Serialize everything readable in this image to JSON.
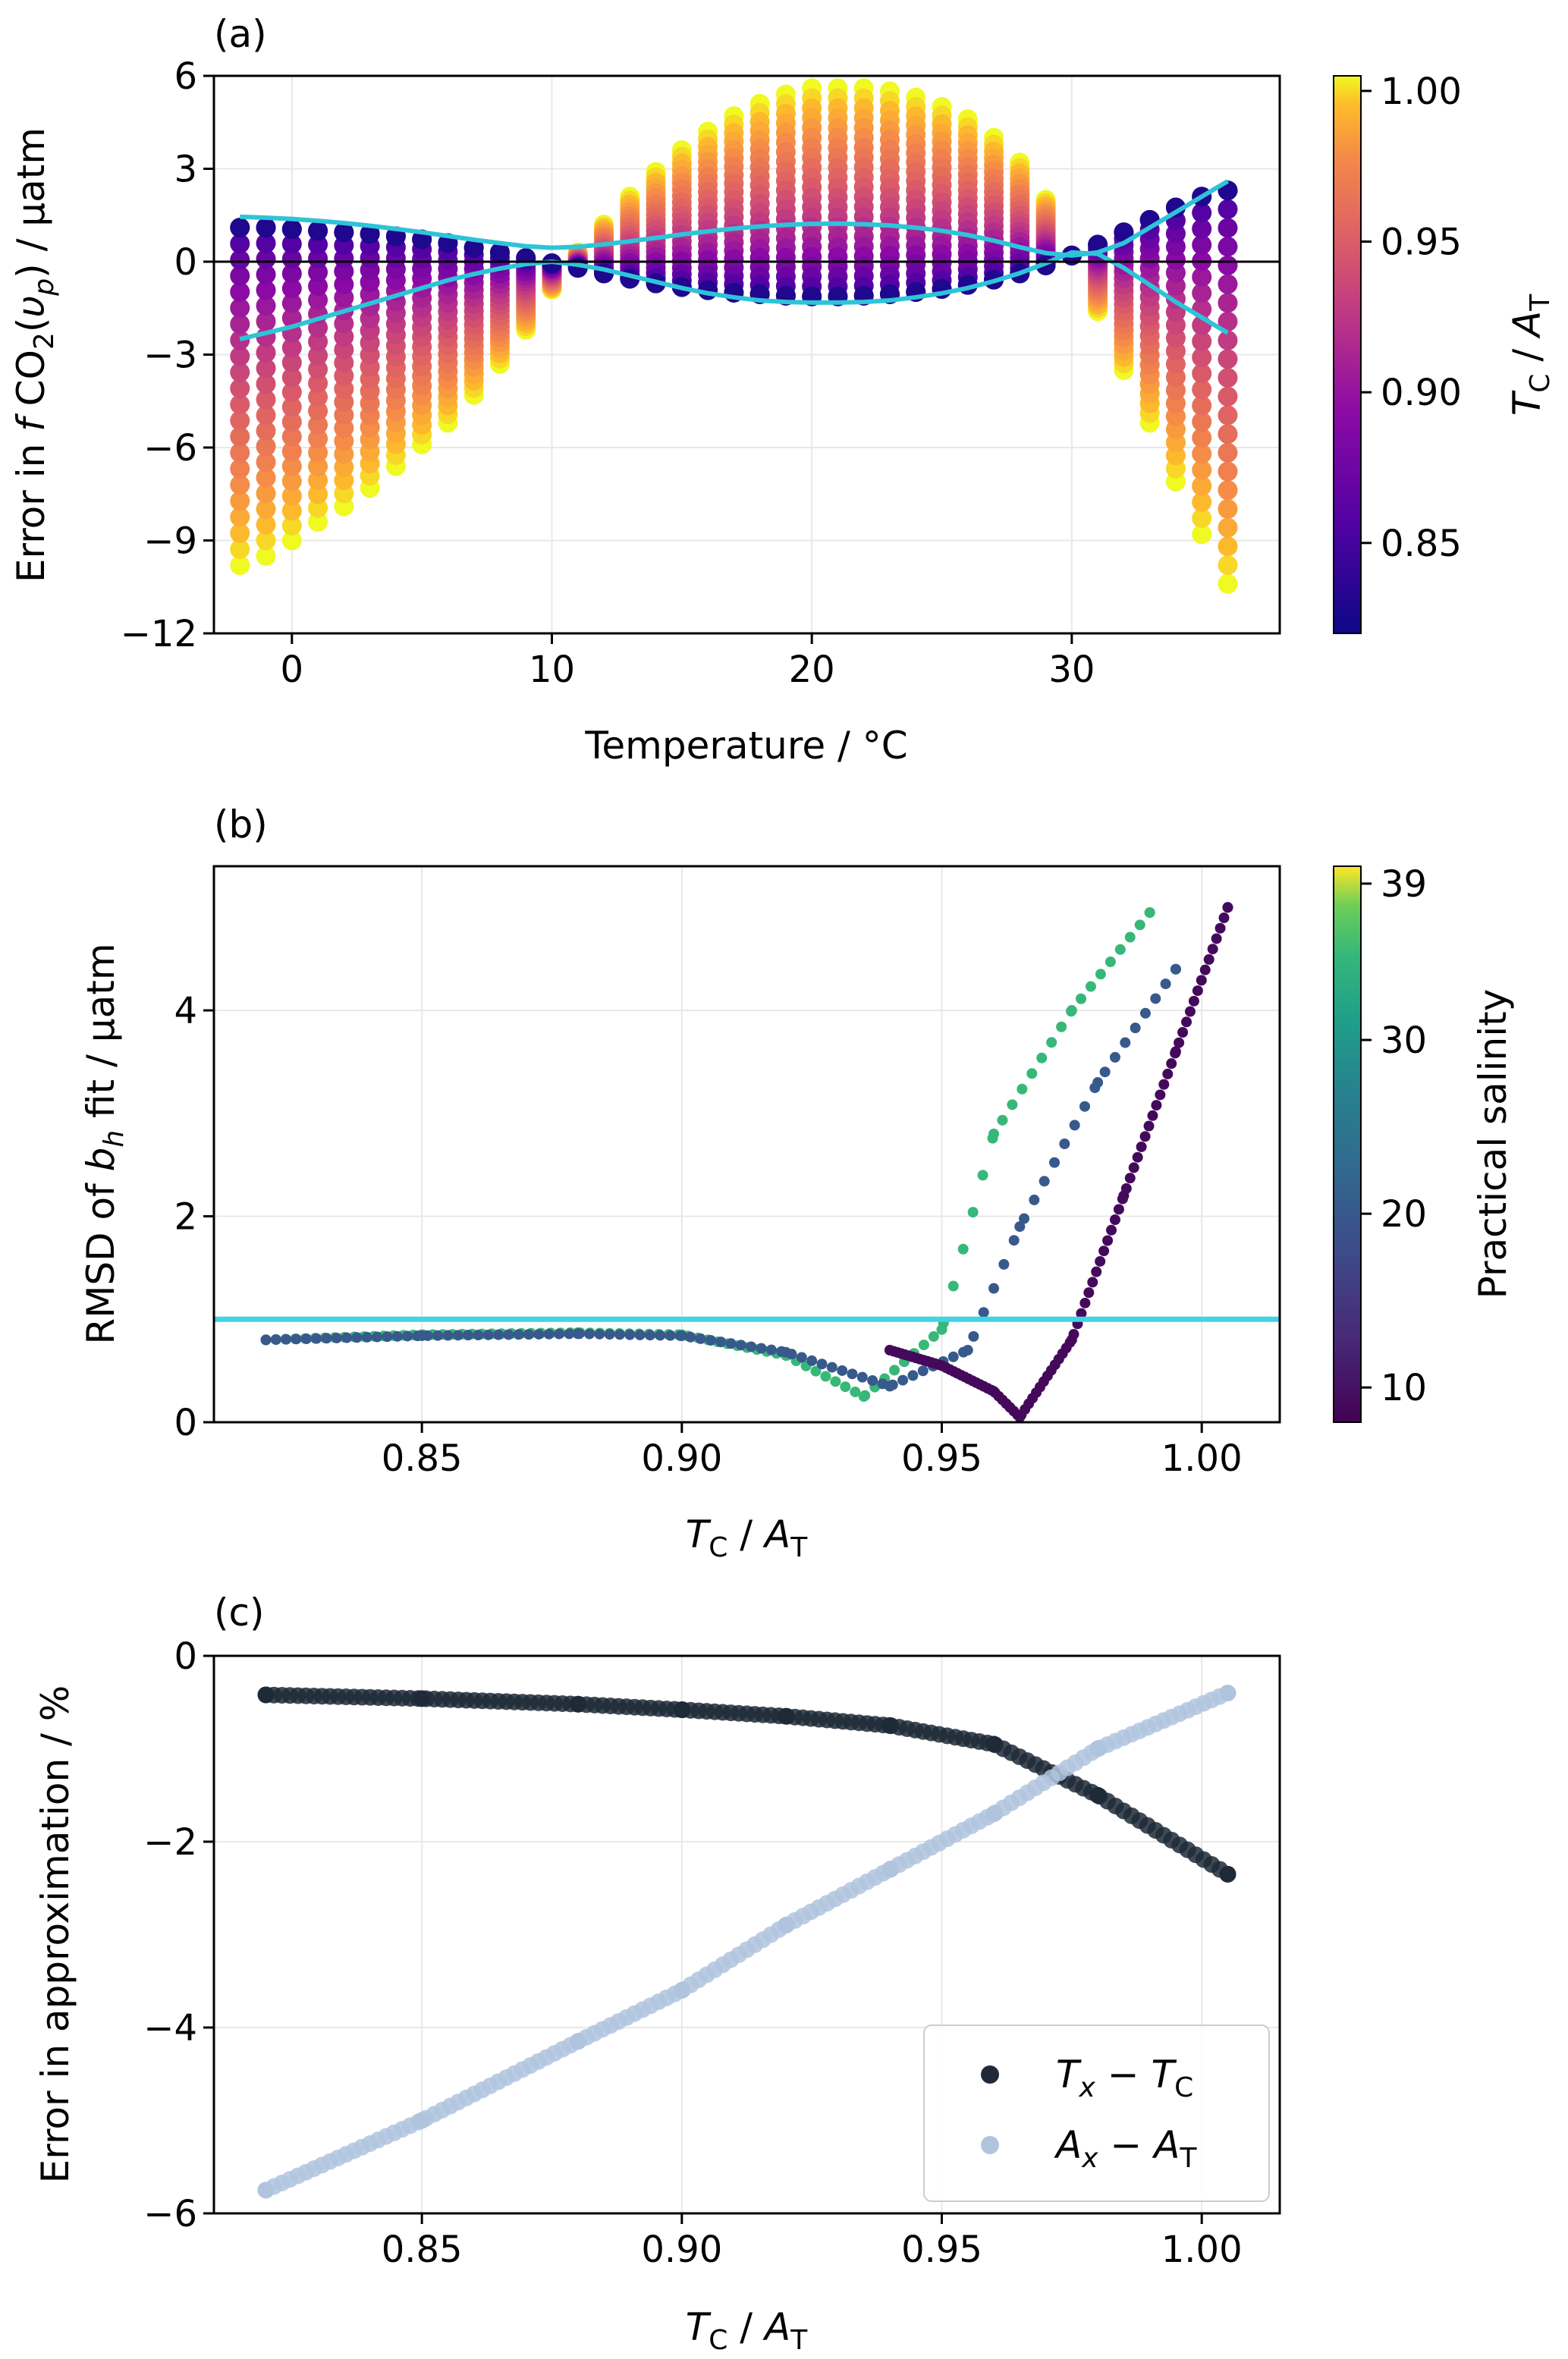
{
  "chart_data": [
    {
      "panel": "(a)",
      "type": "scatter",
      "title": "",
      "xlabel": "Temperature / °C",
      "ylabel": "Error in fCO₂(υp) / µatm",
      "xlim": [
        -3,
        38
      ],
      "ylim": [
        -12,
        6
      ],
      "xticks": [
        "0",
        "10",
        "20",
        "30"
      ],
      "yticks": [
        "6",
        "3",
        "0",
        "−3",
        "−6",
        "−9",
        "−12"
      ],
      "grid": true,
      "colorbar": {
        "label": "TC / AT",
        "range": [
          0.82,
          1.005
        ],
        "ticks": [
          "1.00",
          "0.95",
          "0.90",
          "0.85"
        ],
        "colormap": "plasma"
      },
      "temperatures": [
        -2,
        -1,
        0,
        1,
        2,
        3,
        4,
        5,
        6,
        7,
        8,
        9,
        10,
        11,
        12,
        13,
        14,
        15,
        16,
        17,
        18,
        19,
        20,
        21,
        22,
        23,
        24,
        25,
        26,
        27,
        28,
        29,
        30,
        31,
        32,
        33,
        34,
        35,
        36
      ],
      "error_at_high_ratio": [
        -9.8,
        -9.5,
        -9.0,
        -8.4,
        -7.9,
        -7.3,
        -6.6,
        -5.9,
        -5.2,
        -4.3,
        -3.3,
        -2.2,
        -0.9,
        0.3,
        1.2,
        2.1,
        2.9,
        3.6,
        4.2,
        4.7,
        5.1,
        5.4,
        5.6,
        5.6,
        5.6,
        5.5,
        5.3,
        5.0,
        4.6,
        4.0,
        3.2,
        2.0,
        0.2,
        -1.6,
        -3.5,
        -5.2,
        -7.1,
        -8.8,
        -10.4
      ],
      "error_at_low_ratio": [
        1.1,
        1.1,
        1.05,
        1.0,
        0.95,
        0.9,
        0.82,
        0.72,
        0.6,
        0.45,
        0.3,
        0.12,
        -0.05,
        -0.2,
        -0.38,
        -0.55,
        -0.7,
        -0.82,
        -0.92,
        -1.0,
        -1.05,
        -1.1,
        -1.12,
        -1.12,
        -1.1,
        -1.05,
        -0.98,
        -0.88,
        -0.75,
        -0.58,
        -0.38,
        -0.12,
        0.2,
        0.55,
        0.95,
        1.35,
        1.75,
        2.1,
        2.3
      ],
      "envelope_upper": [
        1.45,
        1.42,
        1.38,
        1.32,
        1.25,
        1.16,
        1.06,
        0.95,
        0.83,
        0.71,
        0.6,
        0.5,
        0.45,
        0.48,
        0.56,
        0.66,
        0.77,
        0.88,
        0.98,
        1.07,
        1.14,
        1.19,
        1.22,
        1.23,
        1.21,
        1.17,
        1.1,
        1.0,
        0.86,
        0.68,
        0.47,
        0.28,
        0.2,
        0.3,
        0.6,
        1.1,
        1.6,
        2.1,
        2.6
      ],
      "envelope_lower": [
        -2.5,
        -2.3,
        -2.1,
        -1.85,
        -1.6,
        -1.35,
        -1.1,
        -0.85,
        -0.6,
        -0.4,
        -0.22,
        -0.08,
        0.0,
        -0.1,
        -0.25,
        -0.45,
        -0.65,
        -0.85,
        -1.02,
        -1.15,
        -1.25,
        -1.3,
        -1.32,
        -1.32,
        -1.3,
        -1.25,
        -1.15,
        -1.02,
        -0.85,
        -0.63,
        -0.37,
        -0.05,
        0.3,
        0.25,
        -0.2,
        -0.75,
        -1.3,
        -1.8,
        -2.3
      ]
    },
    {
      "panel": "(b)",
      "type": "scatter",
      "title": "",
      "xlabel": "TC / AT",
      "ylabel": "RMSD of bh fit / µatm",
      "xlim": [
        0.81,
        1.015
      ],
      "ylim": [
        0,
        5.4
      ],
      "xticks": [
        "0.85",
        "0.90",
        "0.95",
        "1.00"
      ],
      "yticks": [
        "4",
        "2",
        "0"
      ],
      "grid": true,
      "reference_line": 1.0,
      "colorbar": {
        "label": "Practical salinity",
        "range": [
          8,
          40
        ],
        "ticks": [
          "39",
          "30",
          "20",
          "10"
        ],
        "colormap": "viridis"
      },
      "series": [
        {
          "name": "salinity 35",
          "x": [
            0.82,
            0.85,
            0.88,
            0.9,
            0.92,
            0.935,
            0.95,
            0.96,
            0.975,
            0.99
          ],
          "y": [
            0.8,
            0.85,
            0.87,
            0.85,
            0.65,
            0.25,
            0.9,
            2.8,
            4.0,
            4.95
          ]
        },
        {
          "name": "salinity 20",
          "x": [
            0.82,
            0.85,
            0.88,
            0.9,
            0.92,
            0.94,
            0.955,
            0.965,
            0.98,
            0.995
          ],
          "y": [
            0.8,
            0.84,
            0.86,
            0.84,
            0.68,
            0.35,
            0.7,
            1.9,
            3.3,
            4.4
          ]
        },
        {
          "name": "salinity 9",
          "x": [
            0.94,
            0.95,
            0.96,
            0.965,
            0.975,
            0.985,
            0.995,
            1.005
          ],
          "y": [
            0.7,
            0.55,
            0.3,
            0.05,
            0.8,
            2.2,
            3.6,
            5.0
          ]
        }
      ]
    },
    {
      "panel": "(c)",
      "type": "scatter",
      "title": "",
      "xlabel": "TC / AT",
      "ylabel": "Error in approximation / %",
      "xlim": [
        0.81,
        1.015
      ],
      "ylim": [
        -6,
        0
      ],
      "xticks": [
        "0.85",
        "0.90",
        "0.95",
        "1.00"
      ],
      "yticks": [
        "0",
        "−2",
        "−4",
        "−6"
      ],
      "grid": true,
      "legend_position": "bottom-right",
      "series": [
        {
          "name": "Tx − TC",
          "color": "#1f2a37",
          "x": [
            0.82,
            0.85,
            0.88,
            0.9,
            0.92,
            0.94,
            0.96,
            0.98,
            1.005
          ],
          "y": [
            -0.42,
            -0.46,
            -0.52,
            -0.58,
            -0.65,
            -0.75,
            -0.95,
            -1.5,
            -2.35
          ]
        },
        {
          "name": "Ax − AT",
          "color": "#b0c4de",
          "x": [
            0.82,
            0.85,
            0.88,
            0.9,
            0.92,
            0.94,
            0.96,
            0.98,
            1.005
          ],
          "y": [
            -5.75,
            -5.0,
            -4.15,
            -3.6,
            -2.9,
            -2.3,
            -1.7,
            -1.0,
            -0.4
          ]
        }
      ]
    }
  ],
  "panel_a": {
    "label": "(a)",
    "xlabel": "Temperature / °C",
    "ylabel_prefix": "Error in ",
    "ylabel_f": "f",
    "ylabel_co": " CO",
    "ylabel_sub2": "2",
    "ylabel_open": "(",
    "ylabel_v": "υ",
    "ylabel_p": "p",
    "ylabel_suffix": ") / µatm",
    "cbar_T": "T",
    "cbar_Tsub": "C",
    "cbar_sep": " / ",
    "cbar_A": "A",
    "cbar_Asub": "T"
  },
  "panel_b": {
    "label": "(b)",
    "ylabel_prefix": "RMSD of ",
    "ylabel_b": "b",
    "ylabel_bsub": "h",
    "ylabel_suffix": " fit / µatm",
    "cbar_label": "Practical salinity",
    "x_T": "T",
    "x_Tsub": "C",
    "x_sep": " / ",
    "x_A": "A",
    "x_Asub": "T"
  },
  "panel_c": {
    "label": "(c)",
    "ylabel": "Error in approximation / %",
    "x_T": "T",
    "x_Tsub": "C",
    "x_sep": " / ",
    "x_A": "A",
    "x_Asub": "T",
    "legend": [
      {
        "a": "T",
        "asub": "x",
        "op": " − ",
        "b": "T",
        "bsub": "C",
        "color": "#1f2a37"
      },
      {
        "a": "A",
        "asub": "x",
        "op": " − ",
        "b": "A",
        "bsub": "T",
        "color": "#b0c4de"
      }
    ]
  },
  "colors": {
    "reference_line": "#40d4e4",
    "envelope": "#2ec4d8",
    "dark_series": "#1f2a37",
    "light_series": "#b0c4de"
  }
}
